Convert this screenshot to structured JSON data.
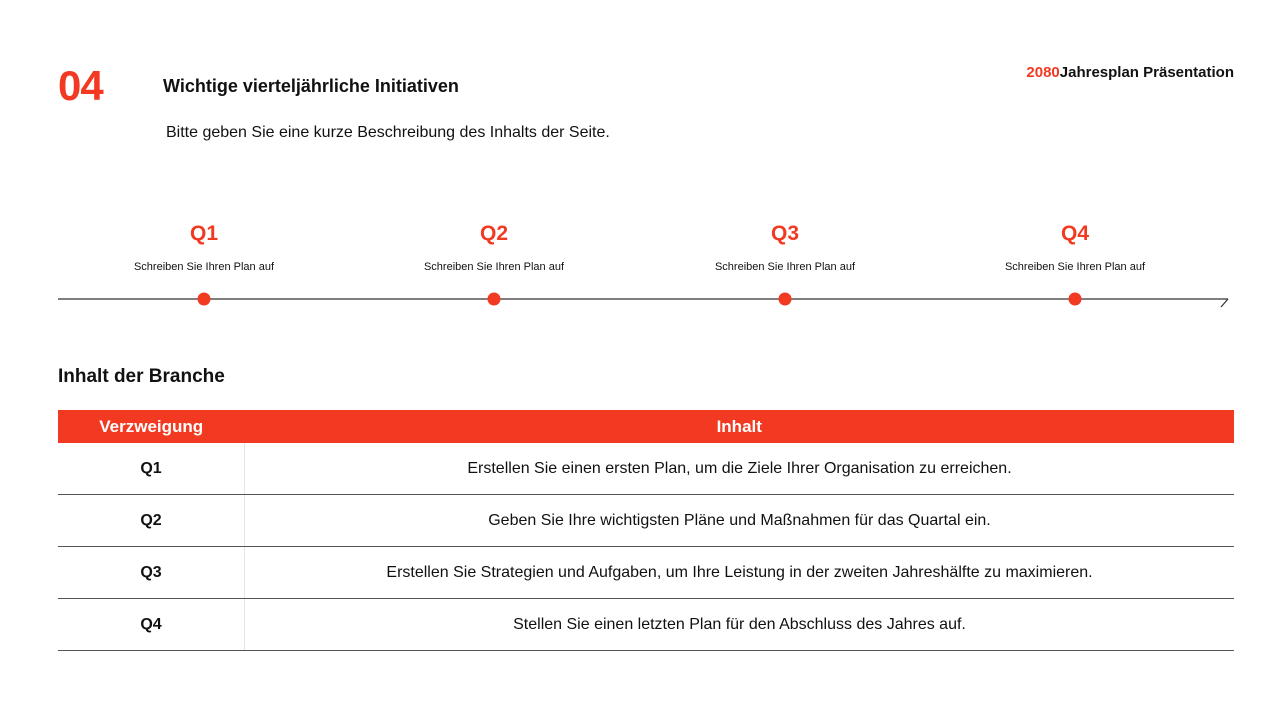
{
  "header": {
    "number": "04",
    "title": "Wichtige vierteljährliche Initiativen",
    "subtitle": "Bitte geben Sie eine kurze Beschreibung des Inhalts der Seite.",
    "brand_year": "2080",
    "brand_name": "Jahresplan Präsentation"
  },
  "timeline": [
    {
      "label": "Q1",
      "text": "Schreiben Sie Ihren Plan auf"
    },
    {
      "label": "Q2",
      "text": "Schreiben Sie Ihren Plan auf"
    },
    {
      "label": "Q3",
      "text": "Schreiben Sie Ihren Plan auf"
    },
    {
      "label": "Q4",
      "text": "Schreiben Sie Ihren Plan auf"
    }
  ],
  "section_title": "Inhalt der Branche",
  "table": {
    "headers": [
      "Verzweigung",
      "Inhalt"
    ],
    "rows": [
      [
        "Q1",
        "Erstellen Sie einen ersten Plan, um die Ziele Ihrer Organisation zu erreichen."
      ],
      [
        "Q2",
        "Geben Sie Ihre wichtigsten Pläne und Maßnahmen für das Quartal ein."
      ],
      [
        "Q3",
        "Erstellen Sie Strategien und Aufgaben, um Ihre Leistung in der zweiten Jahreshälfte zu maximieren."
      ],
      [
        "Q4",
        "Stellen Sie einen letzten Plan für den Abschluss des Jahres auf."
      ]
    ]
  }
}
